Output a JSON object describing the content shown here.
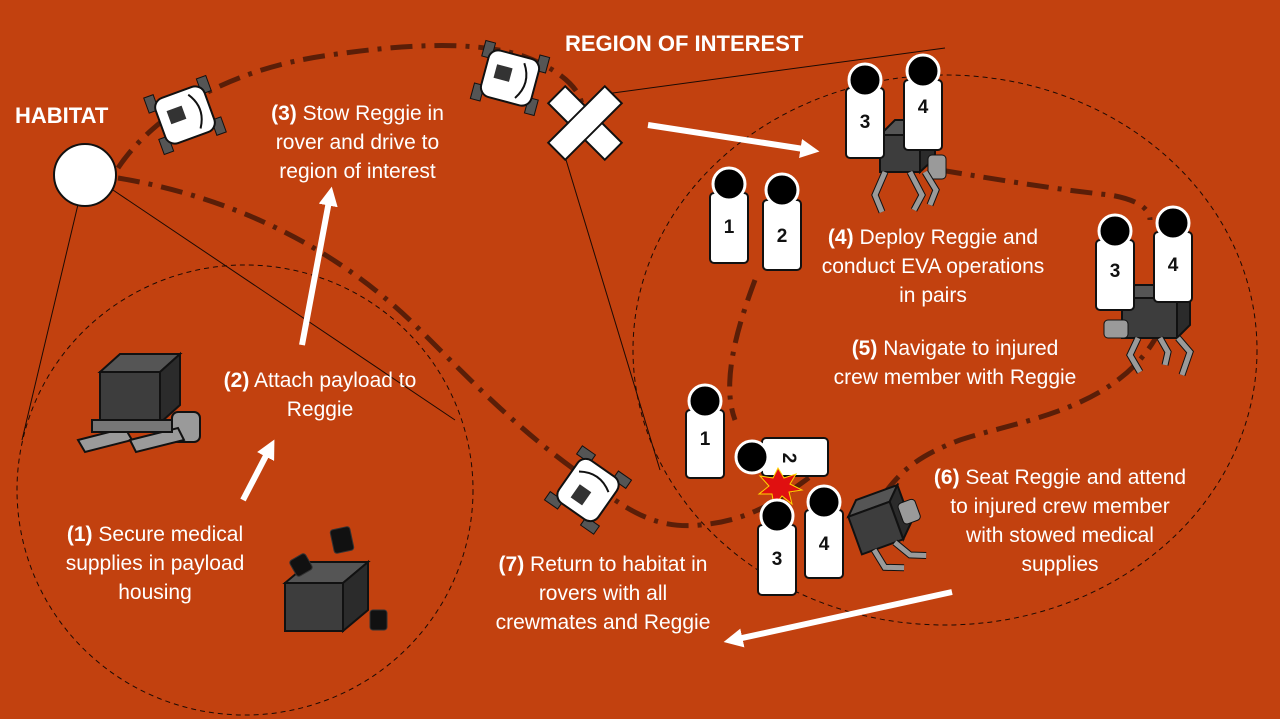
{
  "titles": {
    "habitat": "HABITAT",
    "region": "REGION OF INTEREST"
  },
  "steps": [
    {
      "num": "(1)",
      "text": "Secure medical supplies in payload housing"
    },
    {
      "num": "(2)",
      "text": "Attach payload to Reggie"
    },
    {
      "num": "(3)",
      "text": "Stow Reggie in rover and drive to region of interest"
    },
    {
      "num": "(4)",
      "text": "Deploy Reggie and conduct EVA operations in pairs"
    },
    {
      "num": "(5)",
      "text": "Navigate to injured crew member with Reggie"
    },
    {
      "num": "(6)",
      "text": "Seat Reggie and attend to injured crew member with stowed medical supplies"
    },
    {
      "num": "(7)",
      "text": "Return to habitat in rovers with all crewmates and Reggie"
    }
  ],
  "crew": [
    "1",
    "2",
    "3",
    "4"
  ],
  "colors": {
    "background": "#c2410f",
    "path": "#5a1e08",
    "text": "#ffffff",
    "robot": "#3a3a3a",
    "injury": "#e01010"
  }
}
